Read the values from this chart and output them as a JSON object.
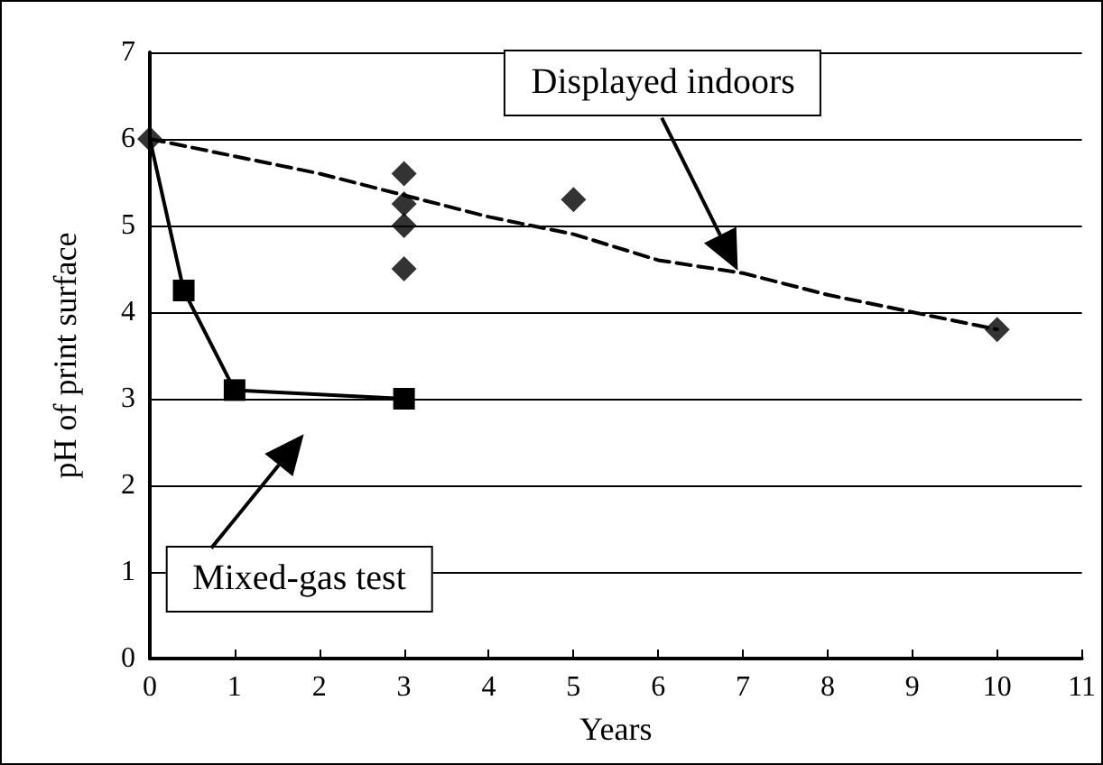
{
  "chart_data": {
    "type": "scatter",
    "xlabel": "Years",
    "ylabel": "pH of print surface",
    "xlim": [
      0,
      11
    ],
    "xticks": [
      0,
      1,
      2,
      3,
      4,
      5,
      6,
      7,
      8,
      9,
      10,
      11
    ],
    "ylim": [
      0,
      7
    ],
    "yticks": [
      0,
      1,
      2,
      3,
      4,
      5,
      6,
      7
    ],
    "grid": "y",
    "series": [
      {
        "color": "#000000",
        "marker": "diamond",
        "x": [
          0,
          3,
          3,
          3,
          3,
          5,
          10
        ],
        "values": [
          6,
          5.6,
          5.25,
          5.0,
          4.5,
          5.3,
          3.8
        ]
      },
      {
        "type": "line",
        "color": "#000000",
        "marker": "none",
        "line_style": "dashed",
        "x": [
          0,
          2,
          4,
          5,
          6,
          7,
          8,
          9,
          10
        ],
        "values": [
          6,
          5.6,
          5.1,
          4.9,
          4.6,
          4.45,
          4.2,
          4.0,
          3.8
        ]
      },
      {
        "type": "line",
        "color": "#000000",
        "marker": "square",
        "line_style": "solid",
        "x": [
          0,
          0.4,
          1,
          3
        ],
        "values": [
          6,
          4.25,
          3.1,
          3.0
        ]
      }
    ],
    "annotations": [
      "Displayed indoors",
      "Mixed-gas test"
    ]
  }
}
